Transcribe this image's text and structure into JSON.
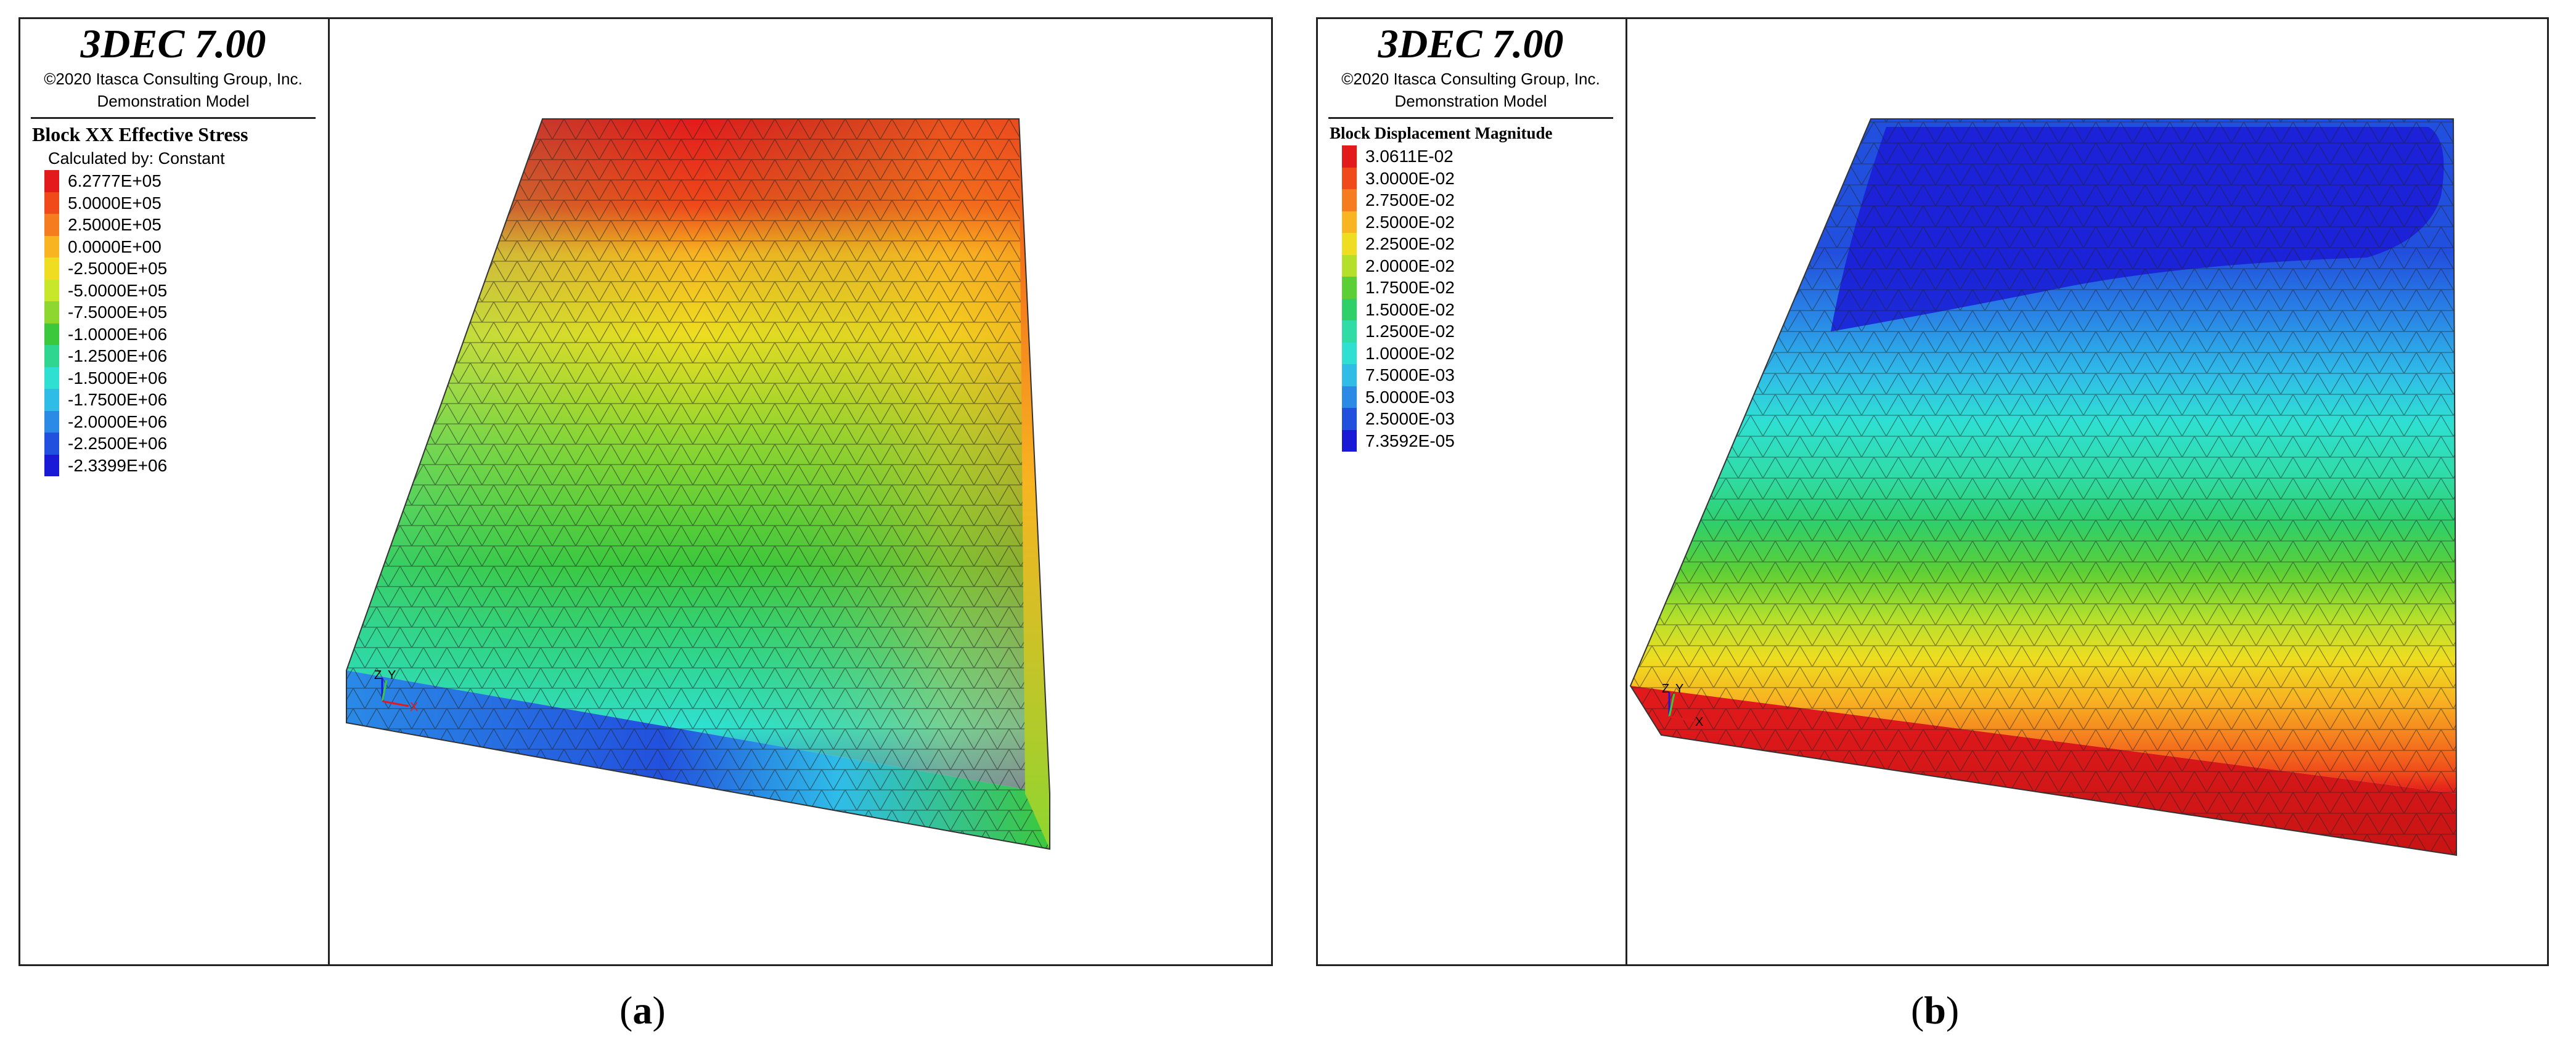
{
  "panels": [
    {
      "app_title": "3DEC 7.00",
      "copyright": "©2020 Itasca Consulting Group, Inc.",
      "model_name": "Demonstration Model",
      "legend_title": "Block XX Effective Stress",
      "legend_subtitle": "Calculated by: Constant",
      "legend_entries": [
        {
          "label": "6.2777E+05",
          "color": "#e31a1c"
        },
        {
          "label": "5.0000E+05",
          "color": "#f04a1a"
        },
        {
          "label": "2.5000E+05",
          "color": "#f57c1f"
        },
        {
          "label": "0.0000E+00",
          "color": "#f8b421"
        },
        {
          "label": "-2.5000E+05",
          "color": "#eedd20"
        },
        {
          "label": "-5.0000E+05",
          "color": "#c8e62a"
        },
        {
          "label": "-7.5000E+05",
          "color": "#8ed630"
        },
        {
          "label": "-1.0000E+06",
          "color": "#3cc83c"
        },
        {
          "label": "-1.2500E+06",
          "color": "#2fd68f"
        },
        {
          "label": "-1.5000E+06",
          "color": "#2fe0d2"
        },
        {
          "label": "-1.7500E+06",
          "color": "#2fbde8"
        },
        {
          "label": "-2.0000E+06",
          "color": "#2a8ae6"
        },
        {
          "label": "-2.2500E+06",
          "color": "#2250de"
        },
        {
          "label": "-2.3399E+06",
          "color": "#1a1ad6"
        }
      ],
      "axis_labels": {
        "z": "Z",
        "y": "Y",
        "x": "X"
      },
      "caption_letter": "a"
    },
    {
      "app_title": "3DEC 7.00",
      "copyright": "©2020 Itasca Consulting Group, Inc.",
      "model_name": "Demonstration Model",
      "legend_title": "Block Displacement Magnitude",
      "legend_subtitle": "",
      "legend_entries": [
        {
          "label": "3.0611E-02",
          "color": "#e31a1c"
        },
        {
          "label": "3.0000E-02",
          "color": "#f04a1a"
        },
        {
          "label": "2.7500E-02",
          "color": "#f57c1f"
        },
        {
          "label": "2.5000E-02",
          "color": "#f8b421"
        },
        {
          "label": "2.2500E-02",
          "color": "#eedd20"
        },
        {
          "label": "2.0000E-02",
          "color": "#b4e02c"
        },
        {
          "label": "1.7500E-02",
          "color": "#5ccf36"
        },
        {
          "label": "1.5000E-02",
          "color": "#2fcf6a"
        },
        {
          "label": "1.2500E-02",
          "color": "#2fdca6"
        },
        {
          "label": "1.0000E-02",
          "color": "#2fe0d2"
        },
        {
          "label": "7.5000E-03",
          "color": "#2fbde8"
        },
        {
          "label": "5.0000E-03",
          "color": "#2a8ae6"
        },
        {
          "label": "2.5000E-03",
          "color": "#2250de"
        },
        {
          "label": "7.3592E-05",
          "color": "#1a1ad6"
        }
      ],
      "axis_labels": {
        "z": "Z",
        "y": "Y",
        "x": "X"
      },
      "caption_letter": "b"
    }
  ]
}
